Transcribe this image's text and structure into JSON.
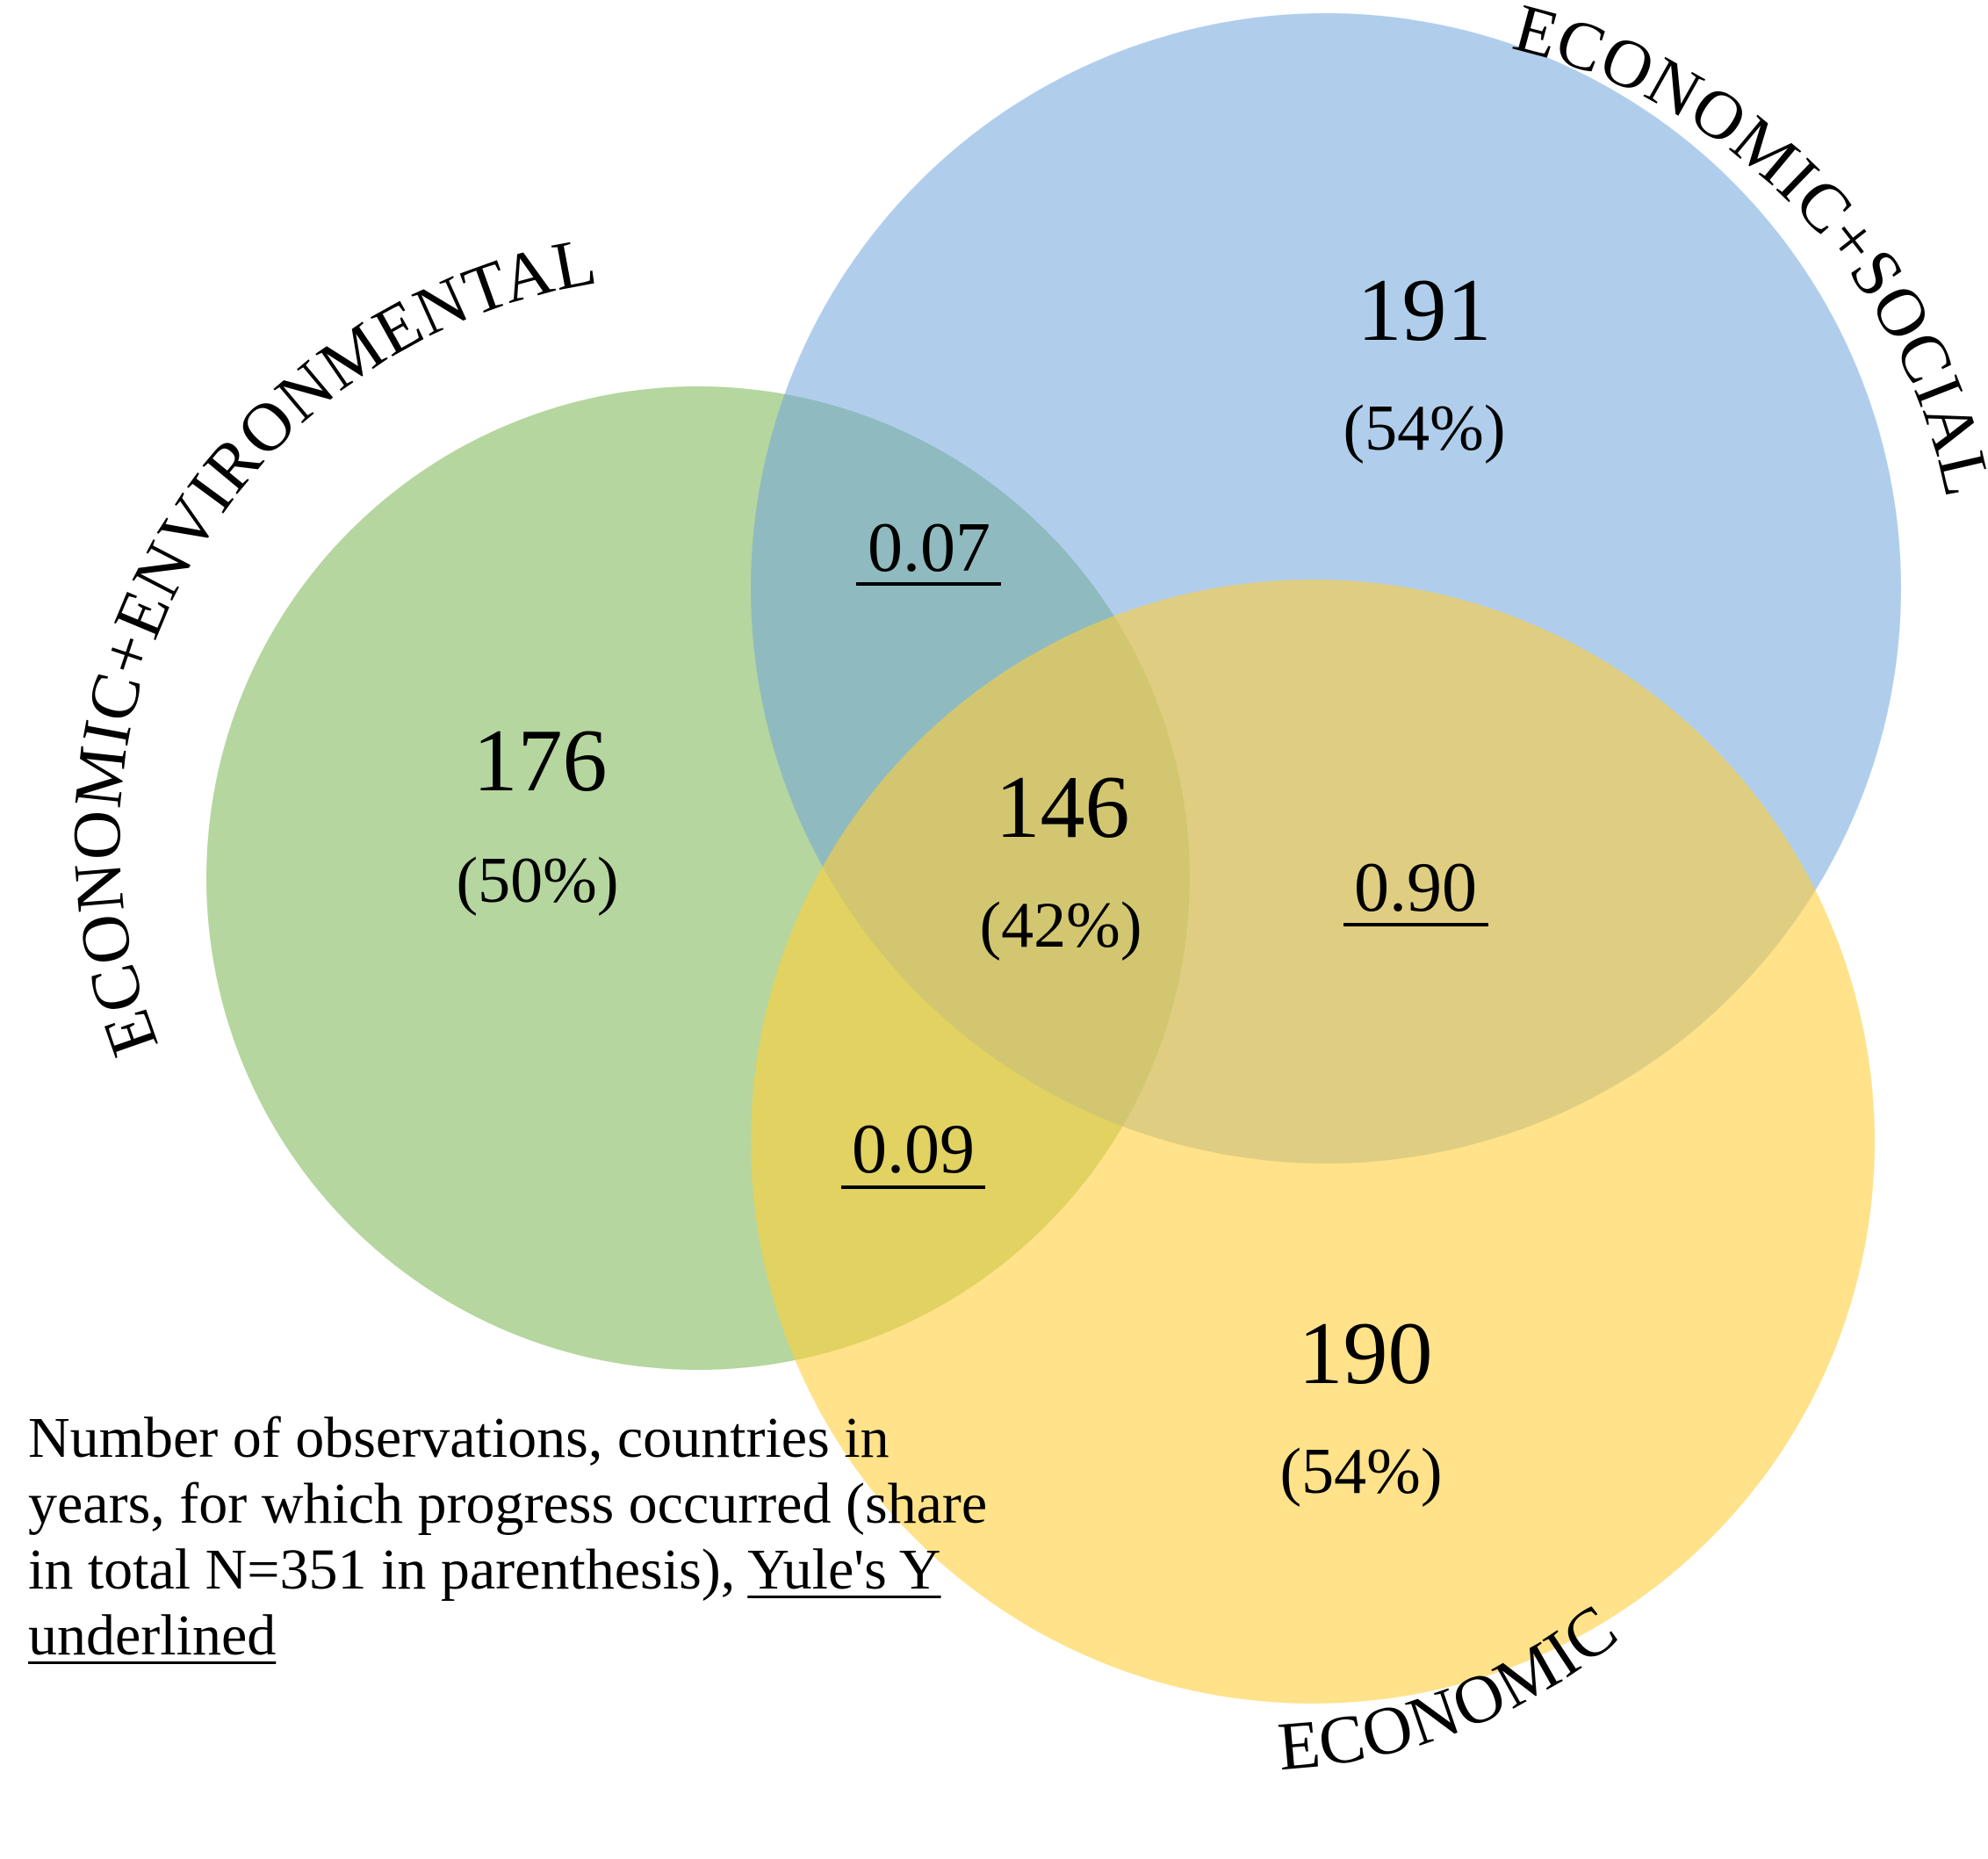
{
  "sets": {
    "environmental": {
      "label": "ECONOMIC+ENVIRONMENTAL",
      "count": "176",
      "share": "(50%)",
      "color": "#8dc06a"
    },
    "social": {
      "label": "ECONOMIC+SOCIAL",
      "count": "191",
      "share": "(54%)",
      "color": "#6fa6dc"
    },
    "economic": {
      "label": "ECONOMIC",
      "count": "190",
      "share": "(54%)",
      "color": "#ffcf3a"
    }
  },
  "center": {
    "count": "146",
    "share": "(42%)"
  },
  "yule": {
    "environmental_social": "0.07",
    "social_economic": "0.90",
    "environmental_economic": "0.09"
  },
  "note": {
    "text": "Number of observations, countries in years, for which progress occurred (share in total N=351 in parenthesis), ",
    "underlined": "Yule's Y underlined"
  }
}
